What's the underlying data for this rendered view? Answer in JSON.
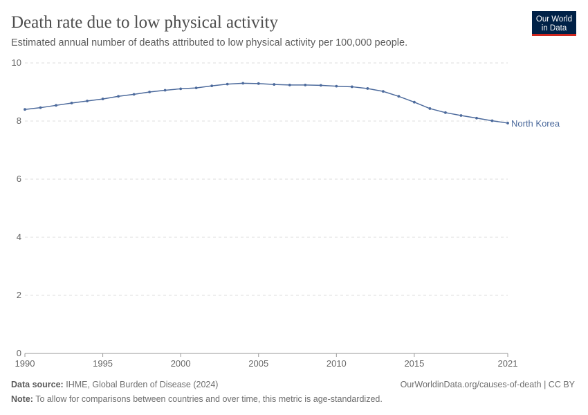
{
  "chart_data": {
    "type": "line",
    "title": "Death rate due to low physical activity",
    "subtitle": "Estimated annual number of deaths attributed to low physical activity per 100,000 people.",
    "x": [
      1990,
      1991,
      1992,
      1993,
      1994,
      1995,
      1996,
      1997,
      1998,
      1999,
      2000,
      2001,
      2002,
      2003,
      2004,
      2005,
      2006,
      2007,
      2008,
      2009,
      2010,
      2011,
      2012,
      2013,
      2014,
      2015,
      2016,
      2017,
      2018,
      2019,
      2020,
      2021
    ],
    "series": [
      {
        "name": "North Korea",
        "color": "#4c6a9c",
        "values": [
          8.4,
          8.46,
          8.54,
          8.62,
          8.69,
          8.76,
          8.85,
          8.92,
          9.0,
          9.06,
          9.11,
          9.14,
          9.21,
          9.27,
          9.3,
          9.29,
          9.26,
          9.24,
          9.24,
          9.23,
          9.2,
          9.18,
          9.12,
          9.02,
          8.85,
          8.65,
          8.43,
          8.29,
          8.19,
          8.1,
          8.01,
          7.93
        ]
      }
    ],
    "xlim": [
      1990,
      2021
    ],
    "xticks": [
      1990,
      1995,
      2000,
      2005,
      2010,
      2015,
      2021
    ],
    "ylim": [
      0,
      10
    ],
    "yticks": [
      0,
      2,
      4,
      6,
      8,
      10
    ],
    "grid": true
  },
  "logo": {
    "line1": "Our World",
    "line2": "in Data"
  },
  "footer": {
    "source_label": "Data source:",
    "source": "IHME, Global Burden of Disease (2024)",
    "url": "OurWorldinData.org/causes-of-death | CC BY",
    "note_label": "Note:",
    "note": "To allow for comparisons between countries and over time, this metric is age-standardized."
  }
}
